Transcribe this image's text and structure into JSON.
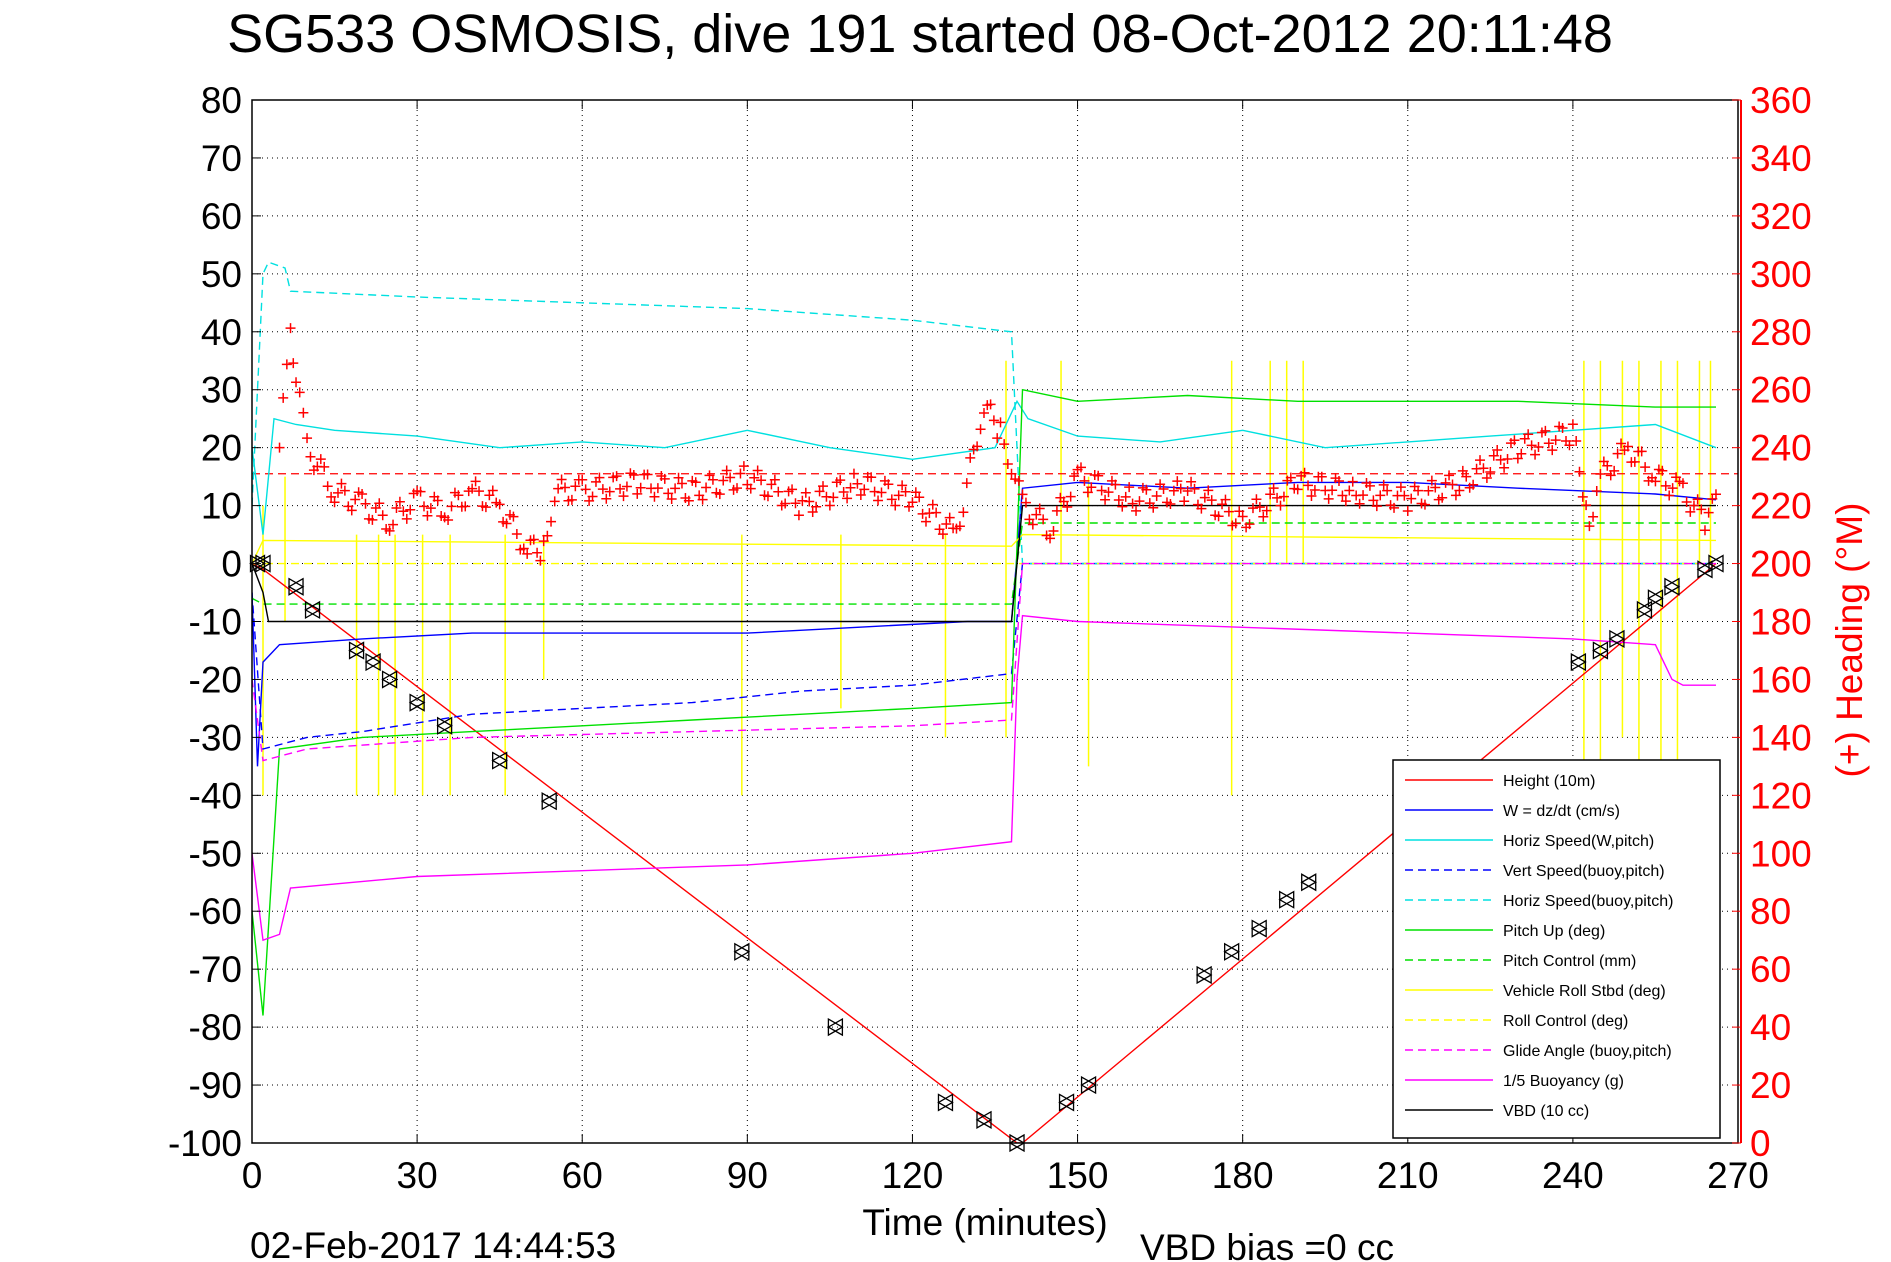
{
  "chart_data": {
    "type": "line",
    "title": "SG533 OSMOSIS, dive 191 started 08-Oct-2012 20:11:48",
    "xlabel": "Time (minutes)",
    "ylabel_right": "(+) Heading (°M)",
    "timestamp": "02-Feb-2017 14:44:53",
    "vbd_note": "VBD bias =0 cc",
    "xlim": [
      0,
      270
    ],
    "ylim": [
      -100,
      80
    ],
    "ylim_right": [
      0,
      360
    ],
    "x_ticks": [
      0,
      30,
      60,
      90,
      120,
      150,
      180,
      210,
      240,
      270
    ],
    "y_ticks": [
      80,
      70,
      60,
      50,
      40,
      30,
      20,
      10,
      0,
      -10,
      -20,
      -30,
      -40,
      -50,
      -60,
      -70,
      -80,
      -90,
      -100
    ],
    "y2_ticks": [
      360,
      340,
      320,
      300,
      280,
      260,
      240,
      220,
      200,
      180,
      160,
      140,
      120,
      100,
      80,
      60,
      40,
      20,
      0
    ],
    "grid": true,
    "legend_position": "bottom-right",
    "series": [
      {
        "name": "Height (10m)",
        "color": "#ff0000",
        "style": "solid",
        "x": [
          0,
          2,
          139,
          140,
          266
        ],
        "y": [
          0,
          -1,
          -100,
          -100,
          0
        ]
      },
      {
        "name": "W = dz/dt (cm/s)",
        "color": "#0000ff",
        "style": "solid",
        "x": [
          0,
          1,
          2,
          5,
          20,
          40,
          60,
          90,
          110,
          130,
          138,
          140,
          150,
          170,
          190,
          210,
          230,
          255,
          266
        ],
        "y": [
          -5,
          -35,
          -17,
          -14,
          -13,
          -12,
          -12,
          -12,
          -11,
          -10,
          -10,
          13,
          14,
          13,
          14,
          14,
          13,
          12,
          11
        ]
      },
      {
        "name": "Horiz Speed(W,pitch)",
        "color": "#00e0e0",
        "style": "solid",
        "x": [
          0,
          2,
          4,
          8,
          15,
          30,
          45,
          60,
          75,
          90,
          105,
          120,
          135,
          139,
          141,
          150,
          165,
          180,
          195,
          210,
          225,
          240,
          255,
          266
        ],
        "y": [
          20,
          5,
          25,
          24,
          23,
          22,
          20,
          21,
          20,
          23,
          20,
          18,
          20,
          28,
          25,
          22,
          21,
          23,
          20,
          21,
          22,
          23,
          24,
          20
        ]
      },
      {
        "name": "Vert Speed(buoy,pitch)",
        "color": "#0000ff",
        "style": "dashed",
        "x": [
          0,
          2,
          10,
          20,
          40,
          60,
          80,
          100,
          120,
          138,
          140,
          266
        ],
        "y": [
          -5,
          -32,
          -30,
          -29,
          -26,
          -25,
          -24,
          -22,
          -21,
          -19,
          0,
          0
        ]
      },
      {
        "name": "Horiz Speed(buoy,pitch)",
        "color": "#00e0e0",
        "style": "dashed",
        "x": [
          0,
          2,
          3,
          6,
          7,
          30,
          60,
          90,
          120,
          138,
          140,
          266
        ],
        "y": [
          10,
          50,
          52,
          51,
          47,
          46,
          45,
          44,
          42,
          40,
          0,
          0
        ]
      },
      {
        "name": "Pitch Up (deg)",
        "color": "#00e000",
        "style": "solid",
        "x": [
          0,
          2,
          5,
          20,
          40,
          60,
          80,
          100,
          120,
          138,
          140,
          150,
          170,
          190,
          210,
          230,
          255,
          266
        ],
        "y": [
          -60,
          -78,
          -32,
          -30,
          -29,
          -28,
          -27,
          -26,
          -25,
          -24,
          30,
          28,
          29,
          28,
          28,
          28,
          27,
          27
        ]
      },
      {
        "name": "Pitch Control (mm)",
        "color": "#00e000",
        "style": "dashed",
        "x": [
          0,
          2,
          138,
          140,
          266
        ],
        "y": [
          -6,
          -7,
          -7,
          7,
          7
        ]
      },
      {
        "name": "Vehicle Roll Stbd (deg)",
        "color": "#ffff00",
        "style": "solid",
        "x": [
          0,
          2,
          138,
          140,
          266
        ],
        "y": [
          0,
          4,
          3,
          5,
          4
        ]
      },
      {
        "name": "Roll Control (deg)",
        "color": "#ffff00",
        "style": "dashed",
        "x": [
          0,
          266
        ],
        "y": [
          0,
          0
        ]
      },
      {
        "name": "Glide Angle (buoy,pitch)",
        "color": "#ff00ff",
        "style": "dashed",
        "x": [
          0,
          2,
          10,
          40,
          80,
          120,
          138,
          140,
          266
        ],
        "y": [
          -20,
          -34,
          -32,
          -30,
          -29,
          -28,
          -27,
          0,
          0
        ]
      },
      {
        "name": "1/5 Buoyancy (g)",
        "color": "#ff00ff",
        "style": "solid",
        "x": [
          0,
          2,
          5,
          6,
          7,
          30,
          60,
          90,
          120,
          138,
          139,
          140,
          150,
          180,
          210,
          240,
          255,
          258,
          260,
          266
        ],
        "y": [
          -50,
          -65,
          -64,
          -60,
          -56,
          -54,
          -53,
          -52,
          -50,
          -48,
          -20,
          -9,
          -10,
          -11,
          -12,
          -13,
          -14,
          -20,
          -21,
          -21
        ]
      },
      {
        "name": "VBD (10 cc)",
        "color": "#000000",
        "style": "solid",
        "x": [
          0,
          2,
          3,
          138,
          140,
          266
        ],
        "y": [
          0,
          -5,
          -10,
          -10,
          10,
          10
        ]
      }
    ],
    "heading_series": {
      "name": "(+) Heading",
      "color": "#ff0000",
      "axis": "right",
      "x": [
        5,
        7,
        8,
        10,
        15,
        20,
        25,
        30,
        35,
        40,
        45,
        50,
        53,
        55,
        60,
        70,
        80,
        90,
        100,
        110,
        120,
        128,
        133,
        136,
        138,
        140,
        145,
        150,
        160,
        170,
        180,
        190,
        200,
        210,
        220,
        230,
        240,
        243,
        245,
        250,
        255,
        260,
        264,
        266
      ],
      "y": [
        240,
        280,
        265,
        240,
        225,
        220,
        215,
        222,
        218,
        225,
        220,
        205,
        205,
        225,
        225,
        228,
        225,
        230,
        220,
        228,
        222,
        210,
        255,
        245,
        235,
        220,
        212,
        230,
        222,
        225,
        215,
        228,
        225,
        222,
        228,
        240,
        245,
        215,
        230,
        240,
        230,
        225,
        215,
        220
      ]
    },
    "heading_ref": {
      "color": "#ff0000",
      "style": "dashed",
      "y_right": 231
    },
    "height_markers": {
      "x": [
        1,
        2,
        8,
        11,
        19,
        22,
        25,
        30,
        35,
        45,
        54,
        89,
        106,
        126,
        133,
        139,
        148,
        152,
        173,
        178,
        183,
        188,
        192,
        241,
        245,
        248,
        253,
        255,
        258,
        264,
        266
      ],
      "y": [
        0,
        0,
        -4,
        -8,
        -15,
        -17,
        -20,
        -24,
        -28,
        -34,
        -41,
        -67,
        -80,
        -93,
        -96,
        -100,
        -93,
        -90,
        -71,
        -67,
        -63,
        -58,
        -55,
        -17,
        -15,
        -13,
        -8,
        -6,
        -4,
        -1,
        0
      ]
    },
    "roll_spikes": {
      "x": [
        2,
        6,
        19,
        23,
        26,
        31,
        36,
        46,
        53,
        89,
        107,
        126,
        137,
        147,
        152,
        178,
        185,
        188,
        191,
        242,
        245,
        249,
        252,
        256,
        259,
        263,
        265
      ],
      "y_low": [
        -40,
        -10,
        -40,
        -40,
        -40,
        -40,
        -40,
        -40,
        -20,
        -40,
        -25,
        -30,
        -30,
        0,
        -35,
        -40,
        0,
        0,
        0,
        -40,
        -40,
        -30,
        -40,
        -35,
        -35,
        0,
        0
      ],
      "y_high": [
        10,
        15,
        5,
        5,
        5,
        5,
        5,
        5,
        5,
        5,
        5,
        5,
        35,
        35,
        15,
        35,
        35,
        35,
        35,
        35,
        35,
        35,
        35,
        35,
        35,
        35,
        35
      ]
    }
  }
}
